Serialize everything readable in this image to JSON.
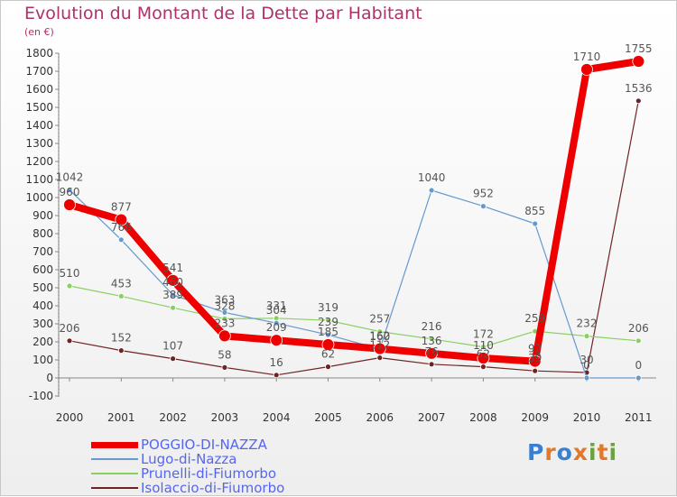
{
  "title": "Evolution du Montant de la Dette par Habitant",
  "unit_label": "(en €)",
  "logo": {
    "text": "Proxiti",
    "letters": [
      {
        "ch": "P",
        "color": "#3a7fd0"
      },
      {
        "ch": "r",
        "color": "#e07a2a"
      },
      {
        "ch": "o",
        "color": "#3a7fd0"
      },
      {
        "ch": "x",
        "color": "#e07a2a"
      },
      {
        "ch": "i",
        "color": "#6aa33a"
      },
      {
        "ch": "t",
        "color": "#e07a2a"
      },
      {
        "ch": "i",
        "color": "#6aa33a"
      }
    ]
  },
  "chart_data": {
    "type": "line",
    "title": "Evolution du Montant de la Dette par Habitant",
    "xlabel": "",
    "ylabel": "(en €)",
    "categories": [
      "2000",
      "2001",
      "2002",
      "2003",
      "2004",
      "2005",
      "2006",
      "2007",
      "2008",
      "2009",
      "2010",
      "2011"
    ],
    "ylim": [
      -100,
      1800
    ],
    "yticks": [
      -100,
      0,
      100,
      200,
      300,
      400,
      500,
      600,
      700,
      800,
      900,
      1000,
      1100,
      1200,
      1300,
      1400,
      1500,
      1600,
      1700,
      1800
    ],
    "grid": false,
    "legend_position": "bottom-left",
    "series": [
      {
        "name": "Isolaccio-di-Fiumorbo",
        "color": "#6e2424",
        "width": 1.2,
        "marker_r": 3,
        "label_color": "#555555",
        "values": [
          206,
          152,
          107,
          58,
          16,
          62,
          112,
          76,
          62,
          39,
          30,
          1536
        ],
        "labels": [
          "206",
          "152",
          "107",
          "58",
          "16",
          "62",
          "112",
          "76",
          "62",
          "39",
          "30",
          "1536"
        ]
      },
      {
        "name": "Prunelli-di-Fiumorbo",
        "color": "#88d060",
        "width": 1.2,
        "marker_r": 3,
        "label_color": "#555555",
        "values": [
          510,
          453,
          389,
          328,
          331,
          319,
          257,
          216,
          172,
          259,
          232,
          206
        ],
        "labels": [
          "510",
          "453",
          "389",
          "328",
          "331",
          "319",
          "257",
          "216",
          "172",
          "259",
          "232",
          "206"
        ]
      },
      {
        "name": "Lugo-di-Nazza",
        "color": "#6699cc",
        "width": 1.2,
        "marker_r": 3,
        "label_color": "#555555",
        "values": [
          1042,
          766,
          460,
          363,
          304,
          239,
          160,
          1040,
          952,
          855,
          0,
          0
        ],
        "labels": [
          "1042",
          "766",
          "460",
          "363",
          "304",
          "239",
          "160",
          "1040",
          "952",
          "855",
          "0",
          "0"
        ]
      },
      {
        "name": "POGGIO-DI-NAZZA",
        "color": "#ee0000",
        "width": 8,
        "marker_r": 6.5,
        "label_color": "#555555",
        "values": [
          960,
          877,
          541,
          233,
          209,
          185,
          162,
          136,
          110,
          92,
          1710,
          1755
        ],
        "labels": [
          "960",
          "877",
          "541",
          "233",
          "209",
          "185",
          "162",
          "136",
          "110",
          "92",
          "1710",
          "1755"
        ]
      }
    ],
    "legend": [
      {
        "name": "POGGIO-DI-NAZZA",
        "color": "#ee0000",
        "text_color": "#5566ee",
        "thickness": 7
      },
      {
        "name": "Lugo-di-Nazza",
        "color": "#6699cc",
        "text_color": "#5566ee",
        "thickness": 2
      },
      {
        "name": "Prunelli-di-Fiumorbo",
        "color": "#88d060",
        "text_color": "#5566ee",
        "thickness": 2
      },
      {
        "name": "Isolaccio-di-Fiumorbo",
        "color": "#6e2424",
        "text_color": "#5566ee",
        "thickness": 2
      }
    ]
  }
}
